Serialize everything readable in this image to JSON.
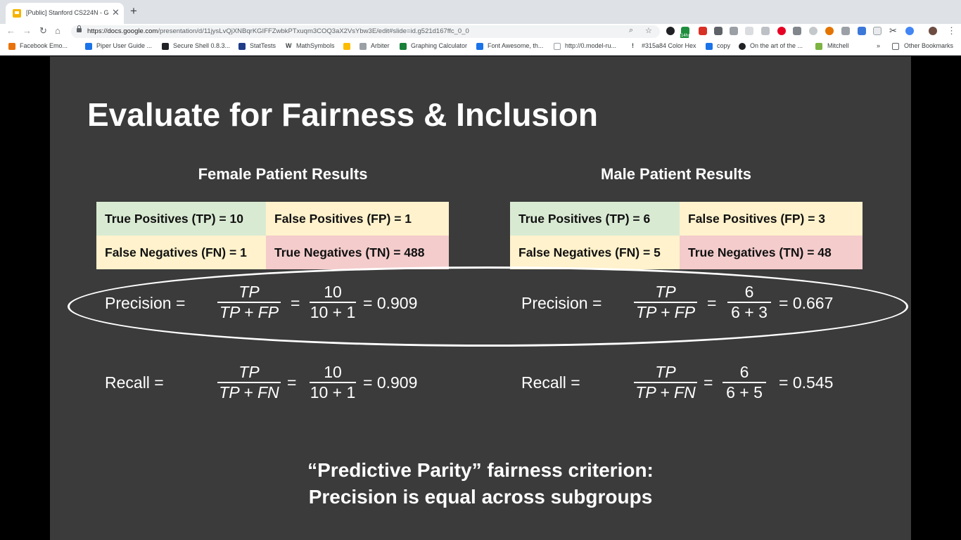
{
  "browser": {
    "tab_title": "[Public] Stanford CS224N - Go",
    "new_tab": "+",
    "url_host": "https://docs.google.com",
    "url_path": "/presentation/d/11jysLvQjXNBqrKGIFFZwbkPTxuqm3COQ3aX2VsYbw3E/edit#slide=id.g521d167ffc_0_0",
    "extension_badge": "14h",
    "bookmarks": [
      "Facebook Emo...",
      "Piper User Guide ...",
      "Secure Shell 0.8.3...",
      "StatTests",
      "MathSymbols",
      "Arbiter",
      "Graphing Calculator",
      "Font Awesome, th...",
      "http://0.model-ru...",
      "#315a84 Color Hex",
      "copy",
      "On the art of the ...",
      "Mitchell"
    ],
    "bookmarks_overflow": "»",
    "other_bookmarks": "Other Bookmarks"
  },
  "slide": {
    "title": "Evaluate for Fairness & Inclusion",
    "female": {
      "heading": "Female Patient Results",
      "tp": "True Positives (TP) = 10",
      "fp": "False Positives (FP) = 1",
      "fn": "False Negatives (FN) = 1",
      "tn": "True Negatives (TN) = 488",
      "precision_label": "Precision =",
      "precision_sym_num": "TP",
      "precision_sym_den": "TP + FP",
      "precision_num": "10",
      "precision_den": "10 + 1",
      "precision_result": "= 0.909",
      "recall_label": "Recall =",
      "recall_sym_num": "TP",
      "recall_sym_den": "TP + FN",
      "recall_num": "10",
      "recall_den": "10 + 1",
      "recall_result": "= 0.909"
    },
    "male": {
      "heading": "Male Patient Results",
      "tp": "True Positives (TP) = 6",
      "fp": "False Positives (FP) = 3",
      "fn": "False Negatives (FN) = 5",
      "tn": "True Negatives (TN) = 48",
      "precision_label": "Precision =",
      "precision_sym_num": "TP",
      "precision_sym_den": "TP + FP",
      "precision_num": "6",
      "precision_den": "6 + 3",
      "precision_result": "= 0.667",
      "recall_label": "Recall =",
      "recall_sym_num": "TP",
      "recall_sym_den": "TP + FN",
      "recall_num": "6",
      "recall_den": "6 + 5",
      "recall_result": "= 0.545"
    },
    "equals": "=",
    "criterion_line1": "“Predictive Parity” fairness criterion:",
    "criterion_line2": "Precision is equal across subgroups"
  },
  "colors": {
    "slide_bg": "#3b3b3b",
    "true_positive": "#d9ead3",
    "false_cell": "#fff2cc",
    "true_negative": "#f4cccc"
  }
}
